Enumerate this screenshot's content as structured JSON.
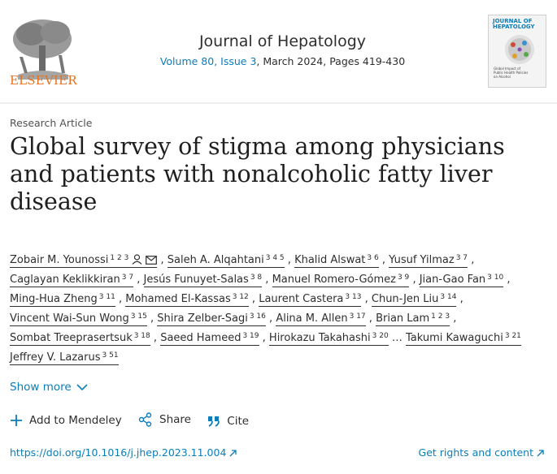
{
  "header": {
    "publisher_logo_text": "ELSEVIER",
    "journal_title": "Journal of Hepatology",
    "volume_issue": "Volume 80, Issue 3",
    "date_pages": ", March 2024, Pages 419-430",
    "cover": {
      "title": "JOURNAL OF HEPATOLOGY",
      "subtitle": "Global Impact of Public Health Policies on Alcohol"
    }
  },
  "article": {
    "type": "Research Article",
    "title": "Global survey of stigma among physicians and patients with nonalcoholic fatty liver disease"
  },
  "authors": [
    {
      "name": "Zobair M. Younossi",
      "sup": "1 2 3",
      "sep": ""
    },
    {
      "name": "Saleh A. Alqahtani",
      "sup": "3 4 5",
      "sep": ","
    },
    {
      "name": "Khalid Alswat",
      "sup": "3 6",
      "sep": ","
    },
    {
      "name": "Yusuf Yilmaz",
      "sup": "3 7",
      "sep": ","
    },
    {
      "name": "Caglayan Keklikkiran",
      "sup": "3 7",
      "sep": ","
    },
    {
      "name": "Jesús Funuyet-Salas",
      "sup": "3 8",
      "sep": ","
    },
    {
      "name": "Manuel Romero-Gómez",
      "sup": "3 9",
      "sep": ","
    },
    {
      "name": "Jian-Gao Fan",
      "sup": "3 10",
      "sep": ","
    },
    {
      "name": "Ming-Hua Zheng",
      "sup": "3 11",
      "sep": ","
    },
    {
      "name": "Mohamed El-Kassas",
      "sup": "3 12",
      "sep": ","
    },
    {
      "name": "Laurent Castera",
      "sup": "3 13",
      "sep": ","
    },
    {
      "name": "Chun-Jen Liu",
      "sup": "3 14",
      "sep": ","
    },
    {
      "name": "Vincent Wai-Sun Wong",
      "sup": "3 15",
      "sep": ","
    },
    {
      "name": "Shira Zelber-Sagi",
      "sup": "3 16",
      "sep": ","
    },
    {
      "name": "Alina M. Allen",
      "sup": "3 17",
      "sep": ","
    },
    {
      "name": "Brian Lam",
      "sup": "1 2 3",
      "sep": ","
    },
    {
      "name": "Sombat Treeprasertsuk",
      "sup": "3 18",
      "sep": ","
    },
    {
      "name": "Saeed Hameed",
      "sup": "3 19",
      "sep": ","
    },
    {
      "name": "Hirokazu Takahashi",
      "sup": "3 20",
      "sep": ","
    },
    {
      "name": "Takumi Kawaguchi",
      "sup": "3 21",
      "sep": "…"
    },
    {
      "name": "Jeffrey V. Lazarus",
      "sup": "3 51",
      "sep": ""
    }
  ],
  "show_more": "Show more",
  "actions": {
    "add_mendeley": "Add to Mendeley",
    "share": "Share",
    "cite": "Cite"
  },
  "doi": "https://doi.org/10.1016/j.jhep.2023.11.004",
  "rights": "Get rights and content",
  "colors": {
    "link": "#0c7dbb",
    "elsevier_orange": "#e9711c"
  }
}
